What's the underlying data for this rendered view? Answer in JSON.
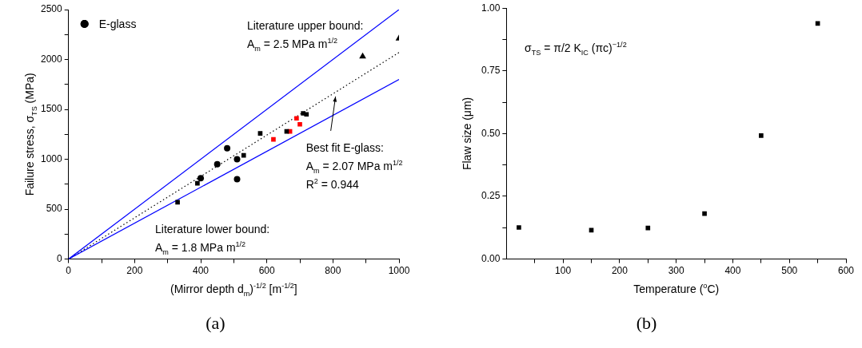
{
  "chart_data": [
    {
      "type": "scatter",
      "xlabel": "(Mirror depth d$_{m}$)$^{-1/2}$ [m$^{-1/2}$]",
      "ylabel": "Failure stress, σ$_{TS}$ (MPa)",
      "xlim": [
        0,
        1000
      ],
      "ylim": [
        0,
        2500
      ],
      "xticks": [
        0,
        {
          "value": 100,
          "label": null
        },
        200,
        {
          "value": 300,
          "label": null
        },
        400,
        {
          "value": 500,
          "label": null
        },
        600,
        {
          "value": 700,
          "label": null
        },
        800,
        {
          "value": 900,
          "label": null
        },
        1000
      ],
      "yticks": [
        0,
        {
          "value": 250,
          "label": null
        },
        500,
        {
          "value": 750,
          "label": null
        },
        1000,
        {
          "value": 1250,
          "label": null
        },
        1500,
        {
          "value": 1750,
          "label": null
        },
        2000,
        {
          "value": 2250,
          "label": null
        },
        2500
      ],
      "legend": "top left",
      "grid": false,
      "series": [
        {
          "name": "E-glass",
          "color": "#000000",
          "marker": "circle",
          "x": [
            400,
            450,
            480,
            510,
            510
          ],
          "values": [
            810,
            950,
            1110,
            1000,
            800
          ]
        },
        {
          "color": "#000000",
          "marker": "square",
          "x": [
            330,
            390,
            530,
            580,
            660,
            710,
            720
          ],
          "values": [
            570,
            760,
            1040,
            1260,
            1280,
            1460,
            1450
          ]
        },
        {
          "color": "#ff0000",
          "marker": "square",
          "x": [
            620,
            670,
            690,
            700
          ],
          "values": [
            1200,
            1280,
            1410,
            1350
          ]
        },
        {
          "color": "#000000",
          "marker": "triangle",
          "x": [
            890,
            1000
          ],
          "values": [
            2030,
            2210
          ]
        },
        {
          "type": "line",
          "color": "#0000ff",
          "marker": "none",
          "line_style": "solid",
          "x": [
            0,
            1000
          ],
          "values": [
            0,
            2500
          ]
        },
        {
          "type": "line",
          "color": "#0000ff",
          "marker": "none",
          "line_style": "solid",
          "x": [
            0,
            1000
          ],
          "values": [
            0,
            1800
          ]
        },
        {
          "type": "line",
          "color": "#000000",
          "marker": "none",
          "line_style": "dotted",
          "x": [
            0,
            1000
          ],
          "values": [
            0,
            2070
          ]
        }
      ],
      "annotations": [
        "Literature upper bound:\nA$_{m}$ = 2.5 MPa m$^{1/2}$",
        "Literature lower bound:\nA$_{m}$ = 1.8 MPa m$^{1/2}$",
        "Best fit E-glass:\nA$_{m}$ = 2.07 MPa m$^{1/2}$\nR$^{2}$ = 0.944",
        "(a)"
      ]
    },
    {
      "type": "scatter",
      "xlabel": "Temperature ($^{o}$C)",
      "ylabel": "Flaw size (μm)",
      "xlim": [
        0,
        600
      ],
      "ylim": [
        0,
        1
      ],
      "xticks": [
        {
          "value": 50,
          "label": null
        },
        100,
        {
          "value": 150,
          "label": null
        },
        200,
        {
          "value": 250,
          "label": null
        },
        300,
        {
          "value": 350,
          "label": null
        },
        400,
        {
          "value": 450,
          "label": null
        },
        500,
        {
          "value": 550,
          "label": null
        },
        600
      ],
      "yticks": [
        {
          "value": 0,
          "label": "0.00"
        },
        {
          "value": 0.125,
          "label": null
        },
        {
          "value": 0.25,
          "label": "0.25"
        },
        {
          "value": 0.375,
          "label": null
        },
        {
          "value": 0.5,
          "label": "0.50"
        },
        {
          "value": 0.625,
          "label": null
        },
        {
          "value": 0.75,
          "label": "0.75"
        },
        {
          "value": 0.875,
          "label": null
        },
        {
          "value": 1,
          "label": "1.00"
        }
      ],
      "grid": false,
      "series": [
        {
          "color": "#000000",
          "marker": "square",
          "x": [
            22,
            150,
            250,
            350,
            450,
            550
          ],
          "values": [
            0.126,
            0.115,
            0.124,
            0.181,
            0.492,
            0.939
          ]
        }
      ],
      "annotations": [
        "σ$_{TS}$ = π/2 K$_{IC}$ (πc)$^{−1/2}$",
        "(b)"
      ]
    }
  ]
}
